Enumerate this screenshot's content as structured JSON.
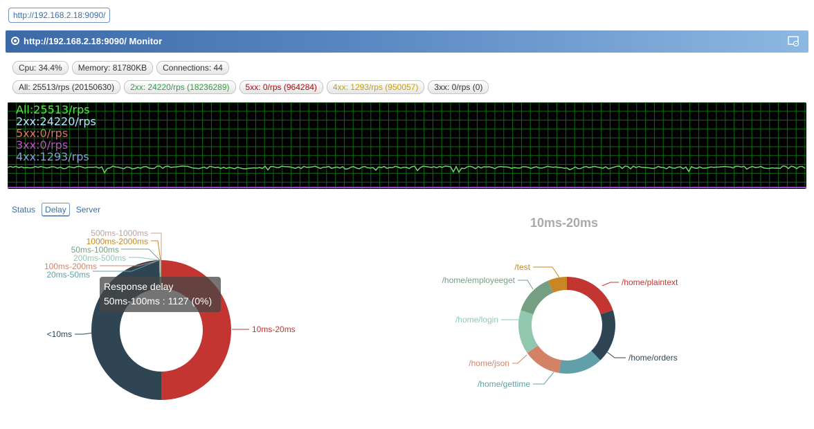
{
  "url_chip": "http://192.168.2.18:9090/",
  "title": "http://192.168.2.18:9090/ Monitor",
  "stats": {
    "cpu": "Cpu: 34.4%",
    "memory": "Memory: 81780KB",
    "connections": "Connections: 44"
  },
  "rps": {
    "all": "All: 25513/rps (20150630)",
    "s2xx": "2xx: 24220/rps (18236289)",
    "s5xx": "5xx: 0/rps (964284)",
    "s4xx": "4xx: 1293/rps (950057)",
    "s3xx": "3xx: 0/rps (0)"
  },
  "graph": {
    "legend": [
      "All:25513/rps",
      "2xx:24220/rps",
      "5xx:0/rps",
      "3xx:0/rps",
      "4xx:1293/rps"
    ]
  },
  "tabs": [
    "Status",
    "Delay",
    "Server"
  ],
  "active_tab": "Delay",
  "tooltip": {
    "title": "Response delay",
    "line": "50ms-100ms : 1127 (0%)"
  },
  "right_chart_title": "10ms-20ms",
  "colors": {
    "red": "#c23531",
    "navy": "#2f4554",
    "teal": "#61a0a8",
    "salmon": "#d48265",
    "mint": "#91c7ae",
    "olive": "#749f83",
    "orange": "#ca8622",
    "tan": "#bda29a"
  },
  "chart_data": [
    {
      "type": "pie",
      "title": "",
      "series": [
        {
          "name": "10ms-20ms",
          "value": 50
        },
        {
          "name": "<10ms",
          "value": 49.5
        },
        {
          "name": "20ms-50ms",
          "value": 0.1
        },
        {
          "name": "100ms-200ms",
          "value": 0.1
        },
        {
          "name": "200ms-500ms",
          "value": 0.1
        },
        {
          "name": "50ms-100ms",
          "value": 0.1
        },
        {
          "name": "1000ms-2000ms",
          "value": 0.05
        },
        {
          "name": "500ms-1000ms",
          "value": 0.05
        }
      ]
    },
    {
      "type": "pie",
      "title": "10ms-20ms",
      "series": [
        {
          "name": "/home/plaintext",
          "value": 19
        },
        {
          "name": "/home/orders",
          "value": 17
        },
        {
          "name": "/home/gettime",
          "value": 14
        },
        {
          "name": "/home/json",
          "value": 12
        },
        {
          "name": "/home/login",
          "value": 14
        },
        {
          "name": "/home/employeeget",
          "value": 13
        },
        {
          "name": "/test",
          "value": 6
        }
      ]
    }
  ]
}
